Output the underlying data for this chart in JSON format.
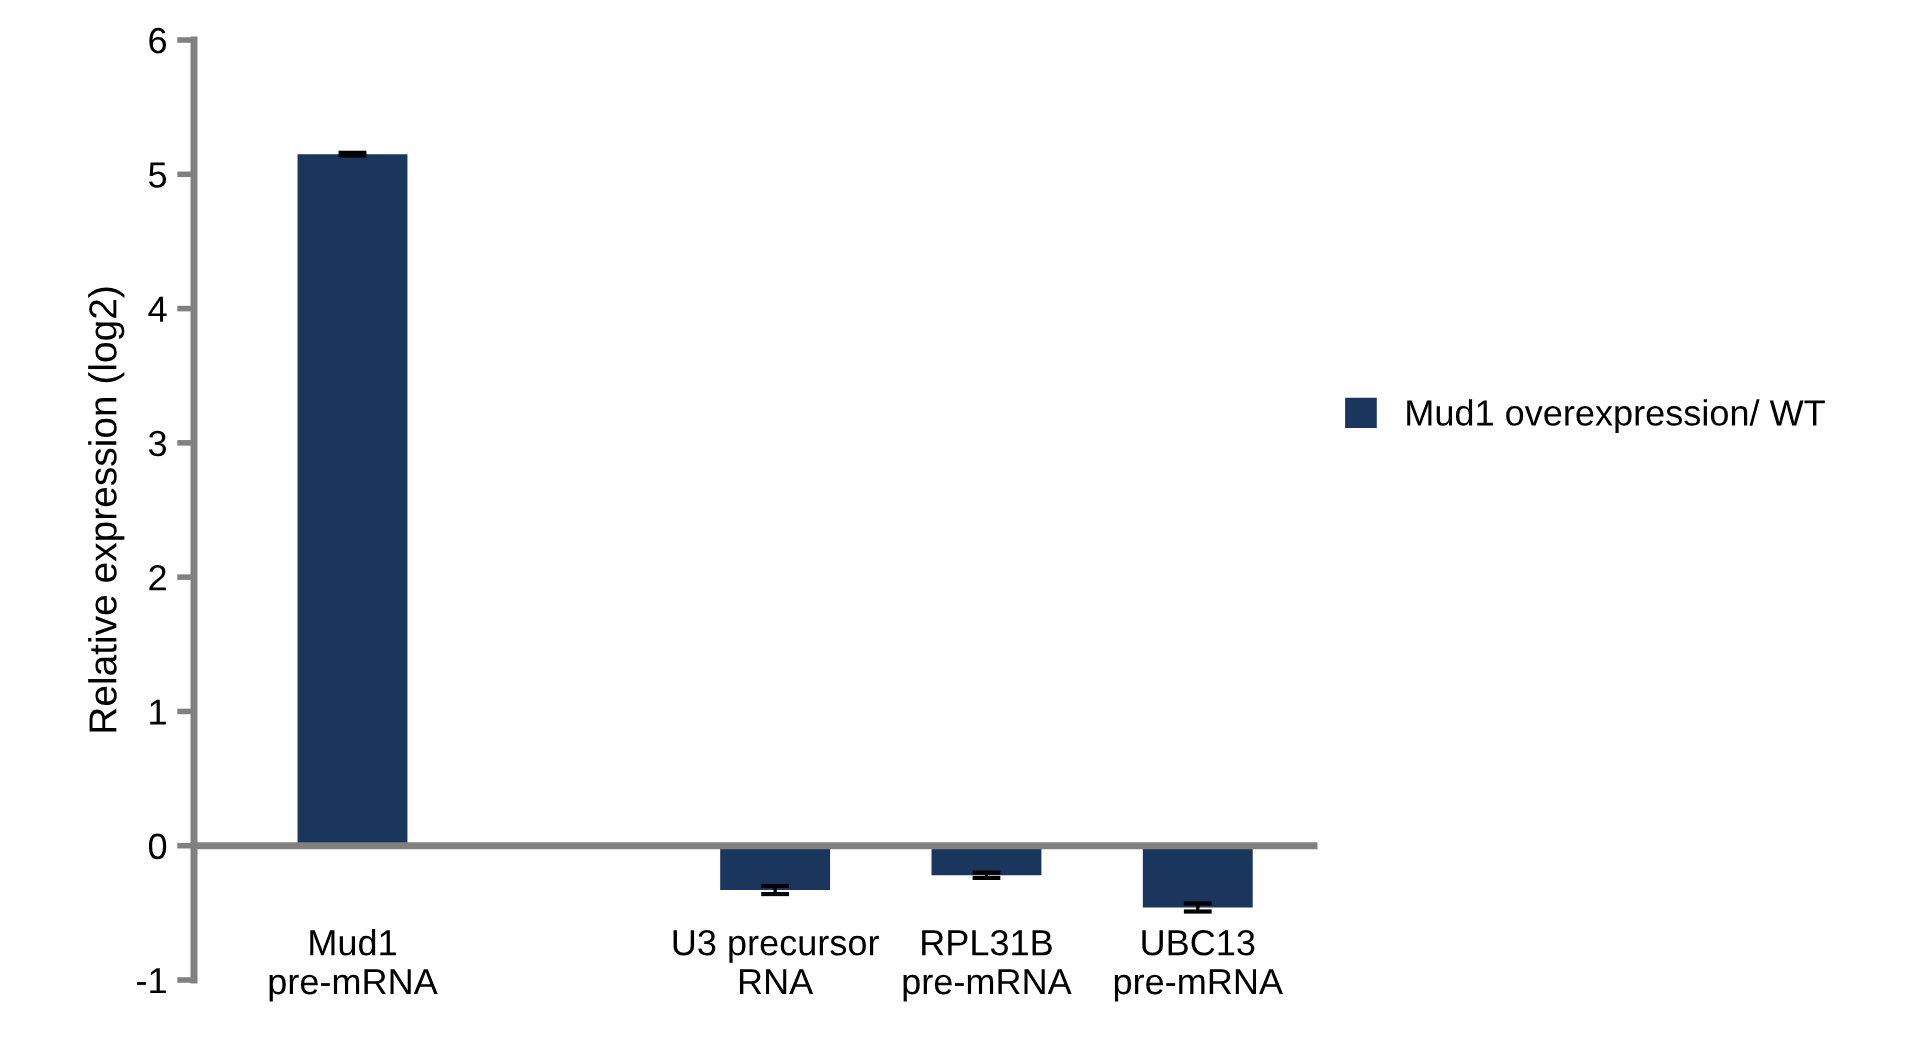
{
  "chart_data": {
    "type": "bar",
    "ylabel": "Relative expression (log2)",
    "categories": [
      "Mud1\npre-mRNA",
      null,
      "U3 precursor\nRNA",
      "RPL31B\npre-mRNA",
      "UBC13\npre-mRNA"
    ],
    "series": [
      {
        "name": "Mud1 overexpression/ WT",
        "color": "#1b365d",
        "values": [
          5.15,
          null,
          -0.33,
          -0.22,
          -0.46
        ],
        "errors": [
          0.01,
          null,
          0.03,
          0.02,
          0.03
        ]
      }
    ],
    "ylim": [
      -1,
      6
    ],
    "yticks": [
      -1,
      0,
      1,
      2,
      3,
      4,
      5,
      6
    ],
    "grid": false,
    "legend": "right"
  }
}
